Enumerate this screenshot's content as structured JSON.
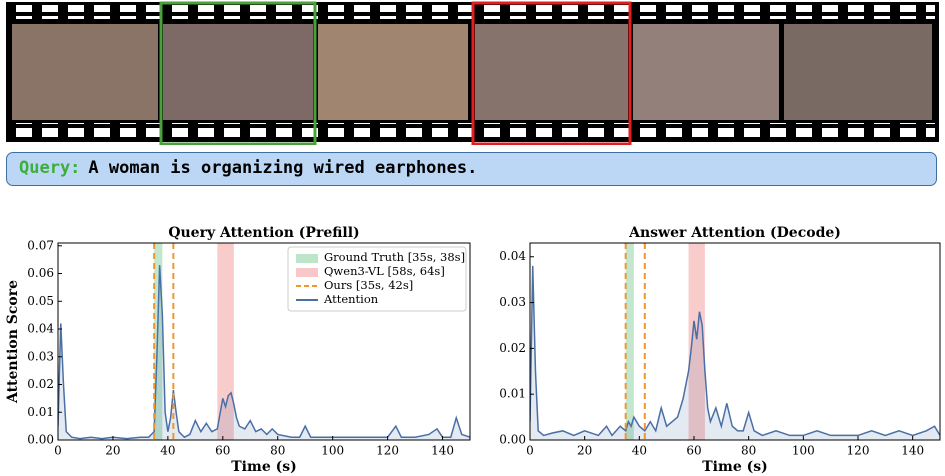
{
  "query": {
    "label": "Query:",
    "text": "A woman is organizing wired earphones."
  },
  "chart_data": [
    {
      "type": "line",
      "title": "Query Attention (Prefill)",
      "xlabel": "Time (s)",
      "ylabel": "Attention Score",
      "xlim": [
        0,
        150
      ],
      "ylim": [
        0,
        0.071
      ],
      "xticks": [
        0,
        20,
        40,
        60,
        80,
        100,
        120,
        140
      ],
      "yticks": [
        {
          "value": 0,
          "label": "0.00"
        },
        0.01,
        0.02,
        0.03,
        0.04,
        0.05,
        0.06,
        0.07
      ],
      "legend": "upper right",
      "spans": [
        {
          "name": "Ground Truth [35s, 38s]",
          "color": "#8fd3a6",
          "range": [
            35,
            38
          ]
        },
        {
          "name": "Qwen3-VL [58s, 64s]",
          "color": "#f4a3a3",
          "range": [
            58,
            64
          ]
        }
      ],
      "vlines": {
        "name": "Ours [35s, 42s]",
        "color": "#f0962e",
        "x": [
          35,
          42
        ]
      },
      "x": [
        0,
        1,
        2,
        3,
        5,
        8,
        12,
        16,
        20,
        25,
        30,
        33,
        35,
        36,
        37,
        38,
        39,
        40,
        41,
        42,
        43,
        44,
        46,
        48,
        50,
        52,
        54,
        56,
        58,
        60,
        61,
        62,
        63,
        64,
        65,
        66,
        68,
        70,
        72,
        74,
        76,
        78,
        80,
        85,
        88,
        90,
        92,
        95,
        100,
        105,
        110,
        115,
        120,
        123,
        125,
        130,
        135,
        138,
        140,
        143,
        145,
        147,
        150
      ],
      "series": [
        {
          "name": "Attention",
          "color": "#4a6fa5",
          "values": [
            0.005,
            0.042,
            0.02,
            0.003,
            0.001,
            0.0005,
            0.001,
            0.0005,
            0.001,
            0.0005,
            0.001,
            0.001,
            0.003,
            0.03,
            0.063,
            0.045,
            0.01,
            0.003,
            0.008,
            0.018,
            0.01,
            0.003,
            0.001,
            0.002,
            0.007,
            0.003,
            0.006,
            0.003,
            0.004,
            0.015,
            0.012,
            0.016,
            0.017,
            0.013,
            0.008,
            0.005,
            0.004,
            0.007,
            0.003,
            0.004,
            0.002,
            0.004,
            0.002,
            0.001,
            0.001,
            0.005,
            0.001,
            0.001,
            0.001,
            0.001,
            0.001,
            0.001,
            0.001,
            0.005,
            0.001,
            0.001,
            0.002,
            0.004,
            0.001,
            0.001,
            0.008,
            0.002,
            0.001
          ]
        }
      ]
    },
    {
      "type": "line",
      "title": "Answer Attention (Decode)",
      "xlabel": "Time (s)",
      "xlim": [
        0,
        150
      ],
      "ylim": [
        0,
        0.043
      ],
      "xticks": [
        0,
        20,
        40,
        60,
        80,
        100,
        120,
        140
      ],
      "yticks": [
        {
          "value": 0,
          "label": "0.00"
        },
        0.01,
        0.02,
        0.03,
        0.04
      ],
      "spans": [
        {
          "color": "#8fd3a6",
          "range": [
            35,
            38
          ]
        },
        {
          "color": "#f4a3a3",
          "range": [
            58,
            64
          ]
        }
      ],
      "vlines": {
        "color": "#f0962e",
        "x": [
          35,
          42
        ]
      },
      "x": [
        0,
        1,
        2,
        3,
        5,
        8,
        12,
        16,
        20,
        25,
        28,
        30,
        33,
        35,
        36,
        37,
        38,
        40,
        42,
        44,
        46,
        48,
        50,
        52,
        54,
        56,
        58,
        59,
        60,
        61,
        62,
        63,
        64,
        65,
        66,
        68,
        70,
        72,
        74,
        76,
        78,
        80,
        82,
        85,
        90,
        95,
        100,
        105,
        110,
        115,
        120,
        125,
        130,
        135,
        140,
        145,
        148,
        150
      ],
      "series": [
        {
          "color": "#4a6fa5",
          "values": [
            0.004,
            0.038,
            0.015,
            0.002,
            0.001,
            0.0015,
            0.002,
            0.001,
            0.002,
            0.001,
            0.003,
            0.001,
            0.003,
            0.002,
            0.004,
            0.003,
            0.005,
            0.003,
            0.002,
            0.004,
            0.002,
            0.007,
            0.003,
            0.004,
            0.005,
            0.009,
            0.015,
            0.02,
            0.026,
            0.022,
            0.028,
            0.025,
            0.015,
            0.007,
            0.004,
            0.007,
            0.003,
            0.008,
            0.003,
            0.002,
            0.002,
            0.006,
            0.002,
            0.001,
            0.002,
            0.001,
            0.001,
            0.002,
            0.001,
            0.001,
            0.001,
            0.002,
            0.001,
            0.002,
            0.001,
            0.002,
            0.003,
            0.001
          ]
        }
      ]
    }
  ]
}
